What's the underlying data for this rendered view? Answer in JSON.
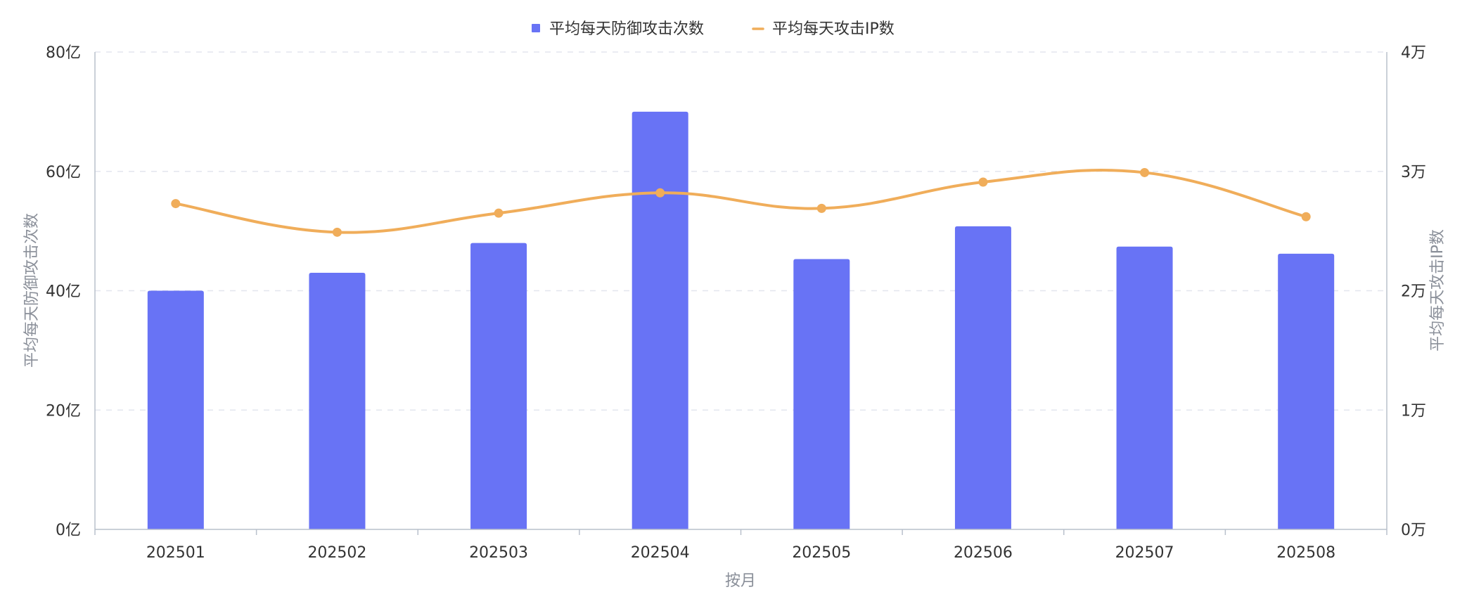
{
  "chart_data": {
    "type": "bar",
    "categories": [
      "202501",
      "202502",
      "202503",
      "202504",
      "202505",
      "202506",
      "202507",
      "202508"
    ],
    "series": [
      {
        "name": "平均每天防御攻击次数",
        "type": "bar",
        "axis": "left",
        "color": "#6873f5",
        "values": [
          40,
          43,
          48,
          70,
          45.3,
          50.8,
          47.4,
          46.2
        ]
      },
      {
        "name": "平均每天攻击IP数",
        "type": "line",
        "axis": "right",
        "color": "#f0ad5a",
        "values": [
          2.73,
          2.49,
          2.65,
          2.82,
          2.69,
          2.91,
          2.99,
          2.62
        ]
      }
    ],
    "xlabel": "按月",
    "ylabel_left": "平均每天防御攻击次数",
    "ylabel_right": "平均每天攻击IP数",
    "ylim_left": [
      0,
      80
    ],
    "ylim_right": [
      0,
      4
    ],
    "yticks_left": [
      "0亿",
      "20亿",
      "40亿",
      "60亿",
      "80亿"
    ],
    "yticks_right": [
      "0万",
      "1万",
      "2万",
      "3万",
      "4万"
    ],
    "grid": true,
    "legend_position": "top-center"
  }
}
